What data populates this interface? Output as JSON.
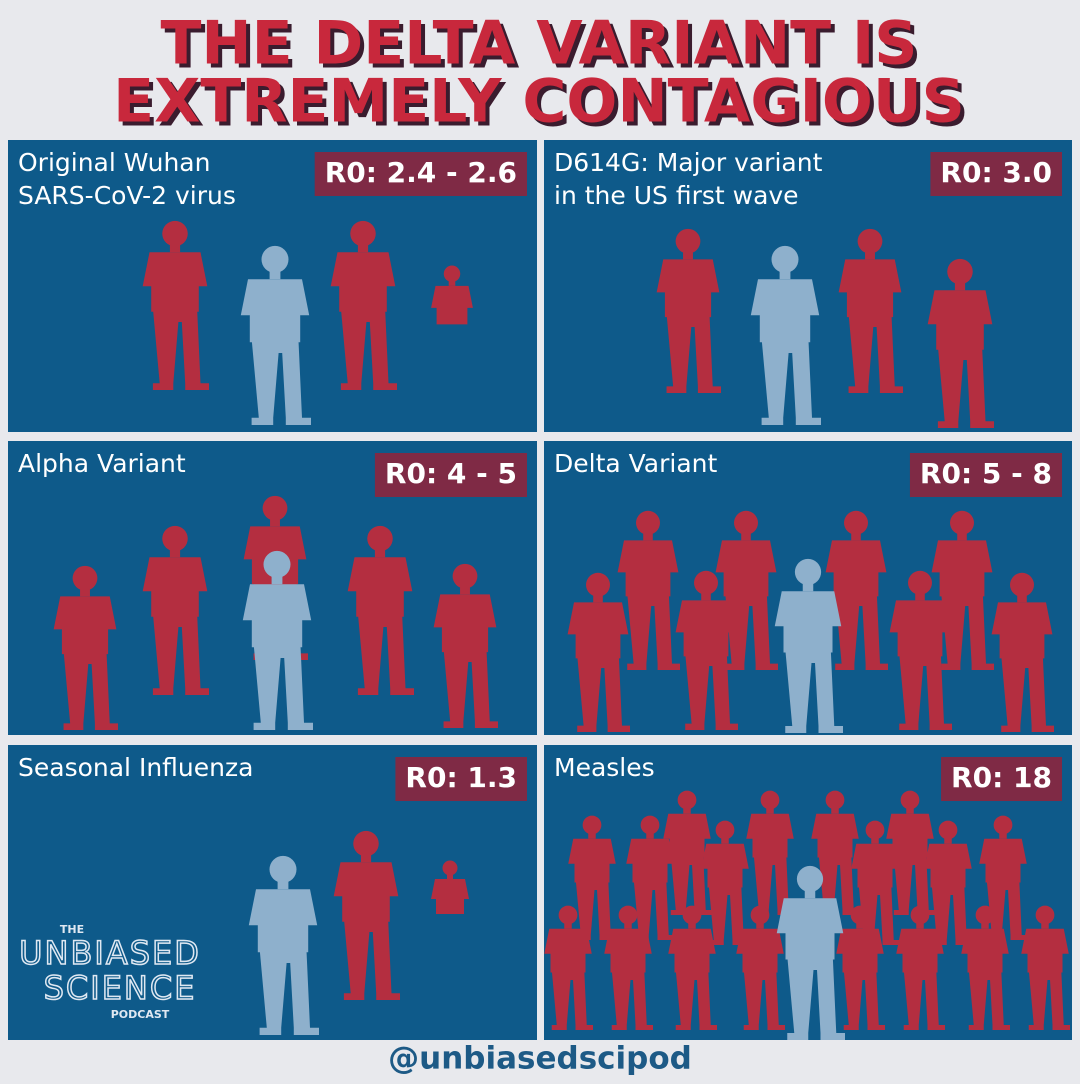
{
  "title": [
    "THE DELTA VARIANT IS",
    "EXTREMELY CONTAGIOUS"
  ],
  "panels": [
    {
      "label": [
        "Original Wuhan",
        "SARS-CoV-2 virus"
      ],
      "r0": "R0: 2.4 - 2.6"
    },
    {
      "label": [
        "D614G: Major variant",
        "in the US first wave"
      ],
      "r0": "R0: 3.0"
    },
    {
      "label": [
        "Alpha Variant"
      ],
      "r0": "R0: 4 - 5"
    },
    {
      "label": [
        "Delta Variant"
      ],
      "r0": "R0: 5 - 8"
    },
    {
      "label": [
        "Seasonal Influenza"
      ],
      "r0": "R0: 1.3"
    },
    {
      "label": [
        "Measles"
      ],
      "r0": "R0: 18"
    }
  ],
  "logo": {
    "the": "THE",
    "line1": "UNBIASED",
    "line2": "SCIENCE",
    "podcast": "PODCAST"
  },
  "handle": "@unbiasedscipod"
}
